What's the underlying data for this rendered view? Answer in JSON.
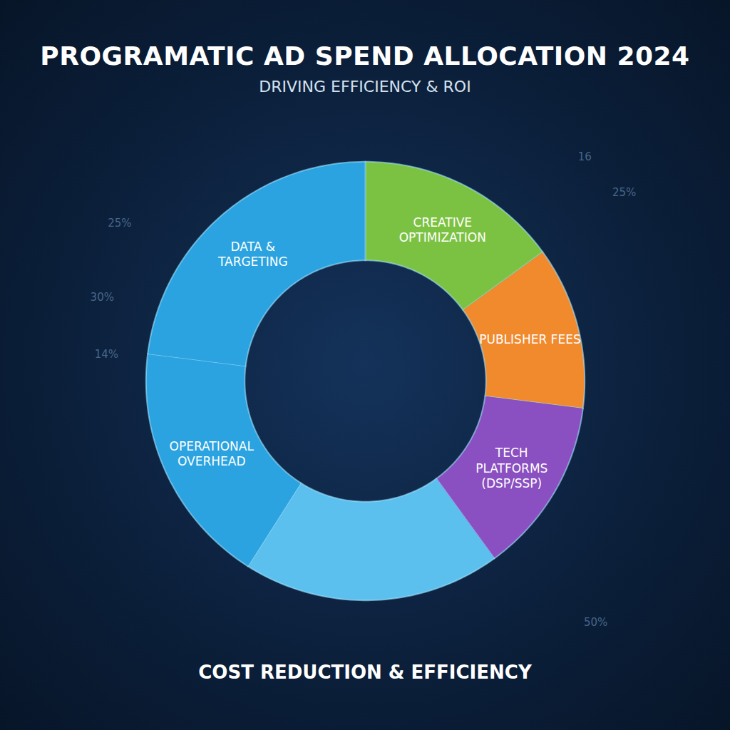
{
  "chart_data": {
    "type": "pie",
    "title": "PROGRAMATIC AD SPEND ALLOCATION 2024",
    "subtitle": "DRIVING EFFICIENCY & ROI",
    "caption": "COST REDUCTION & EFFICIENCY",
    "categories": [
      "CREATIVE OPTIMIZATION",
      "PUBLISHER FEES",
      "TECH PLATFORMS (DSP/SSP)",
      null,
      "OPERATIONAL OVERHEAD",
      "DATA & TARGETING"
    ],
    "values": [
      15,
      12,
      13,
      19,
      18,
      23
    ],
    "colors": [
      "#7cc242",
      "#f08a2c",
      "#8a4fc0",
      "#5cc0ee",
      "#2aa3e0",
      "#2aa3e0"
    ],
    "annotations": [
      "25%",
      "30%",
      "14%",
      "16",
      "25%",
      "50%"
    ]
  }
}
